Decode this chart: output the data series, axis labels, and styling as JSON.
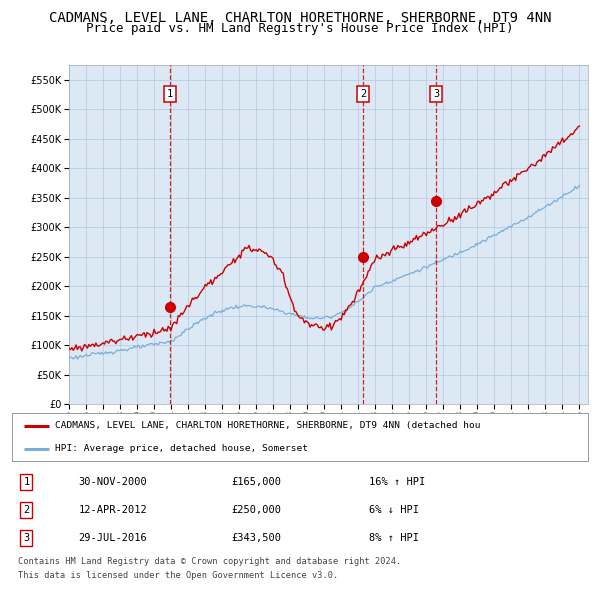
{
  "title": "CADMANS, LEVEL LANE, CHARLTON HORETHORNE, SHERBORNE, DT9 4NN",
  "subtitle": "Price paid vs. HM Land Registry's House Price Index (HPI)",
  "title_fontsize": 10,
  "subtitle_fontsize": 9,
  "plot_bg_color": "#dce9f5",
  "ylim": [
    0,
    575000
  ],
  "yticks": [
    0,
    50000,
    100000,
    150000,
    200000,
    250000,
    300000,
    350000,
    400000,
    450000,
    500000,
    550000
  ],
  "year_start": 1995,
  "year_end": 2025,
  "sale_markers": [
    {
      "year": 2000.92,
      "price": 165000,
      "label": "1"
    },
    {
      "year": 2012.28,
      "price": 250000,
      "label": "2"
    },
    {
      "year": 2016.58,
      "price": 343500,
      "label": "3"
    }
  ],
  "vline_years": [
    2000.92,
    2012.28,
    2016.58
  ],
  "legend_line1": "CADMANS, LEVEL LANE, CHARLTON HORETHORNE, SHERBORNE, DT9 4NN (detached hou",
  "legend_line2": "HPI: Average price, detached house, Somerset",
  "table_rows": [
    {
      "num": "1",
      "date": "30-NOV-2000",
      "price": "£165,000",
      "hpi": "16% ↑ HPI"
    },
    {
      "num": "2",
      "date": "12-APR-2012",
      "price": "£250,000",
      "hpi": "6% ↓ HPI"
    },
    {
      "num": "3",
      "date": "29-JUL-2016",
      "price": "£343,500",
      "hpi": "8% ↑ HPI"
    }
  ],
  "footer": [
    "Contains HM Land Registry data © Crown copyright and database right 2024.",
    "This data is licensed under the Open Government Licence v3.0."
  ],
  "red_line_color": "#cc0000",
  "blue_line_color": "#7aaed6",
  "marker_color": "#cc0000"
}
